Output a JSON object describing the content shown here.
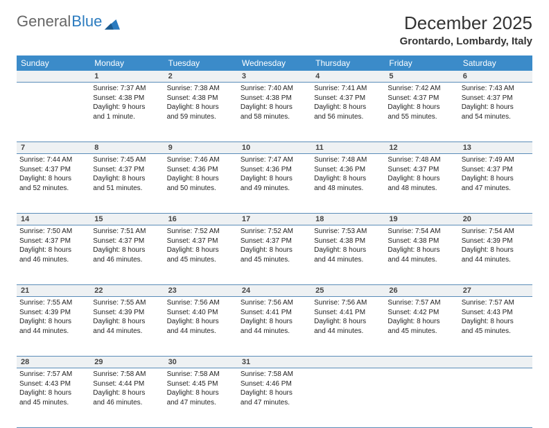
{
  "brand": {
    "part1": "General",
    "part2": "Blue"
  },
  "title": "December 2025",
  "location": "Grontardo, Lombardy, Italy",
  "colors": {
    "header_bg": "#3b8bc9",
    "daynum_bg": "#eef1f3",
    "row_border": "#5a8cb8",
    "brand_blue": "#2b7bbf",
    "text": "#222222",
    "background": "#ffffff"
  },
  "weekday_labels": [
    "Sunday",
    "Monday",
    "Tuesday",
    "Wednesday",
    "Thursday",
    "Friday",
    "Saturday"
  ],
  "weeks": [
    {
      "nums": [
        "",
        "1",
        "2",
        "3",
        "4",
        "5",
        "6"
      ],
      "cells": [
        null,
        {
          "sunrise": "Sunrise: 7:37 AM",
          "sunset": "Sunset: 4:38 PM",
          "day1": "Daylight: 9 hours",
          "day2": "and 1 minute."
        },
        {
          "sunrise": "Sunrise: 7:38 AM",
          "sunset": "Sunset: 4:38 PM",
          "day1": "Daylight: 8 hours",
          "day2": "and 59 minutes."
        },
        {
          "sunrise": "Sunrise: 7:40 AM",
          "sunset": "Sunset: 4:38 PM",
          "day1": "Daylight: 8 hours",
          "day2": "and 58 minutes."
        },
        {
          "sunrise": "Sunrise: 7:41 AM",
          "sunset": "Sunset: 4:37 PM",
          "day1": "Daylight: 8 hours",
          "day2": "and 56 minutes."
        },
        {
          "sunrise": "Sunrise: 7:42 AM",
          "sunset": "Sunset: 4:37 PM",
          "day1": "Daylight: 8 hours",
          "day2": "and 55 minutes."
        },
        {
          "sunrise": "Sunrise: 7:43 AM",
          "sunset": "Sunset: 4:37 PM",
          "day1": "Daylight: 8 hours",
          "day2": "and 54 minutes."
        }
      ]
    },
    {
      "nums": [
        "7",
        "8",
        "9",
        "10",
        "11",
        "12",
        "13"
      ],
      "cells": [
        {
          "sunrise": "Sunrise: 7:44 AM",
          "sunset": "Sunset: 4:37 PM",
          "day1": "Daylight: 8 hours",
          "day2": "and 52 minutes."
        },
        {
          "sunrise": "Sunrise: 7:45 AM",
          "sunset": "Sunset: 4:37 PM",
          "day1": "Daylight: 8 hours",
          "day2": "and 51 minutes."
        },
        {
          "sunrise": "Sunrise: 7:46 AM",
          "sunset": "Sunset: 4:36 PM",
          "day1": "Daylight: 8 hours",
          "day2": "and 50 minutes."
        },
        {
          "sunrise": "Sunrise: 7:47 AM",
          "sunset": "Sunset: 4:36 PM",
          "day1": "Daylight: 8 hours",
          "day2": "and 49 minutes."
        },
        {
          "sunrise": "Sunrise: 7:48 AM",
          "sunset": "Sunset: 4:36 PM",
          "day1": "Daylight: 8 hours",
          "day2": "and 48 minutes."
        },
        {
          "sunrise": "Sunrise: 7:48 AM",
          "sunset": "Sunset: 4:37 PM",
          "day1": "Daylight: 8 hours",
          "day2": "and 48 minutes."
        },
        {
          "sunrise": "Sunrise: 7:49 AM",
          "sunset": "Sunset: 4:37 PM",
          "day1": "Daylight: 8 hours",
          "day2": "and 47 minutes."
        }
      ]
    },
    {
      "nums": [
        "14",
        "15",
        "16",
        "17",
        "18",
        "19",
        "20"
      ],
      "cells": [
        {
          "sunrise": "Sunrise: 7:50 AM",
          "sunset": "Sunset: 4:37 PM",
          "day1": "Daylight: 8 hours",
          "day2": "and 46 minutes."
        },
        {
          "sunrise": "Sunrise: 7:51 AM",
          "sunset": "Sunset: 4:37 PM",
          "day1": "Daylight: 8 hours",
          "day2": "and 46 minutes."
        },
        {
          "sunrise": "Sunrise: 7:52 AM",
          "sunset": "Sunset: 4:37 PM",
          "day1": "Daylight: 8 hours",
          "day2": "and 45 minutes."
        },
        {
          "sunrise": "Sunrise: 7:52 AM",
          "sunset": "Sunset: 4:37 PM",
          "day1": "Daylight: 8 hours",
          "day2": "and 45 minutes."
        },
        {
          "sunrise": "Sunrise: 7:53 AM",
          "sunset": "Sunset: 4:38 PM",
          "day1": "Daylight: 8 hours",
          "day2": "and 44 minutes."
        },
        {
          "sunrise": "Sunrise: 7:54 AM",
          "sunset": "Sunset: 4:38 PM",
          "day1": "Daylight: 8 hours",
          "day2": "and 44 minutes."
        },
        {
          "sunrise": "Sunrise: 7:54 AM",
          "sunset": "Sunset: 4:39 PM",
          "day1": "Daylight: 8 hours",
          "day2": "and 44 minutes."
        }
      ]
    },
    {
      "nums": [
        "21",
        "22",
        "23",
        "24",
        "25",
        "26",
        "27"
      ],
      "cells": [
        {
          "sunrise": "Sunrise: 7:55 AM",
          "sunset": "Sunset: 4:39 PM",
          "day1": "Daylight: 8 hours",
          "day2": "and 44 minutes."
        },
        {
          "sunrise": "Sunrise: 7:55 AM",
          "sunset": "Sunset: 4:39 PM",
          "day1": "Daylight: 8 hours",
          "day2": "and 44 minutes."
        },
        {
          "sunrise": "Sunrise: 7:56 AM",
          "sunset": "Sunset: 4:40 PM",
          "day1": "Daylight: 8 hours",
          "day2": "and 44 minutes."
        },
        {
          "sunrise": "Sunrise: 7:56 AM",
          "sunset": "Sunset: 4:41 PM",
          "day1": "Daylight: 8 hours",
          "day2": "and 44 minutes."
        },
        {
          "sunrise": "Sunrise: 7:56 AM",
          "sunset": "Sunset: 4:41 PM",
          "day1": "Daylight: 8 hours",
          "day2": "and 44 minutes."
        },
        {
          "sunrise": "Sunrise: 7:57 AM",
          "sunset": "Sunset: 4:42 PM",
          "day1": "Daylight: 8 hours",
          "day2": "and 45 minutes."
        },
        {
          "sunrise": "Sunrise: 7:57 AM",
          "sunset": "Sunset: 4:43 PM",
          "day1": "Daylight: 8 hours",
          "day2": "and 45 minutes."
        }
      ]
    },
    {
      "nums": [
        "28",
        "29",
        "30",
        "31",
        "",
        "",
        ""
      ],
      "cells": [
        {
          "sunrise": "Sunrise: 7:57 AM",
          "sunset": "Sunset: 4:43 PM",
          "day1": "Daylight: 8 hours",
          "day2": "and 45 minutes."
        },
        {
          "sunrise": "Sunrise: 7:58 AM",
          "sunset": "Sunset: 4:44 PM",
          "day1": "Daylight: 8 hours",
          "day2": "and 46 minutes."
        },
        {
          "sunrise": "Sunrise: 7:58 AM",
          "sunset": "Sunset: 4:45 PM",
          "day1": "Daylight: 8 hours",
          "day2": "and 47 minutes."
        },
        {
          "sunrise": "Sunrise: 7:58 AM",
          "sunset": "Sunset: 4:46 PM",
          "day1": "Daylight: 8 hours",
          "day2": "and 47 minutes."
        },
        null,
        null,
        null
      ]
    }
  ]
}
